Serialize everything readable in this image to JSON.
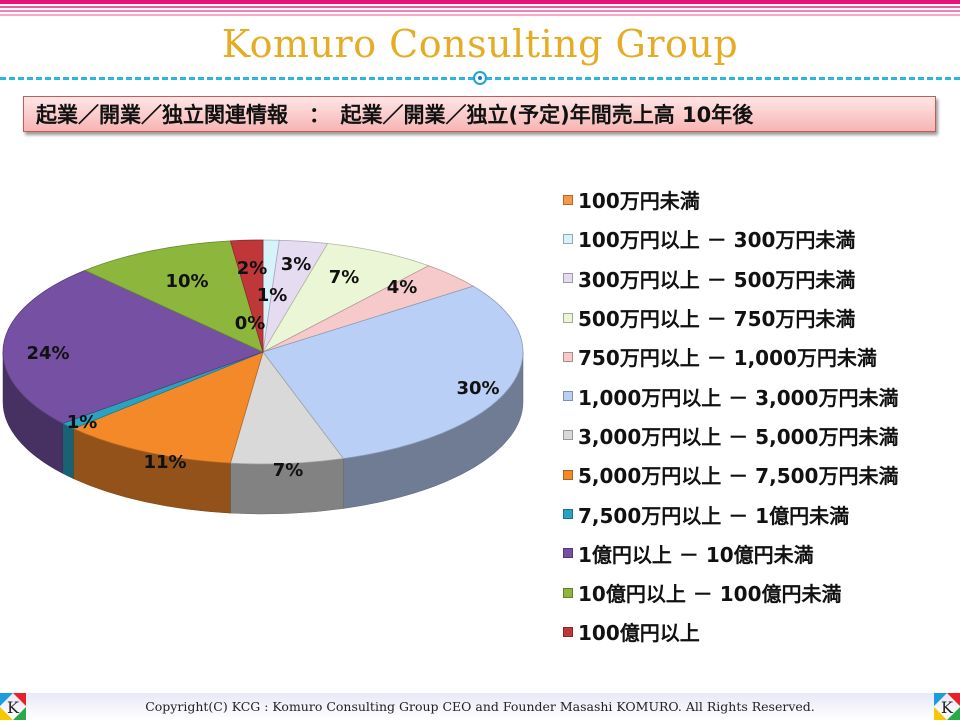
{
  "header": {
    "title": "Komuro Consulting Group",
    "subtitle": "起業／開業／独立関連情報　：　起業／開業／独立(予定)年間売上高 10年後"
  },
  "chart_data": {
    "type": "pie",
    "style": "3d",
    "title": "起業／開業／独立(予定)年間売上高 10年後",
    "legend_position": "right",
    "series": [
      {
        "label": "100万円未満",
        "value": 0,
        "display": "0%",
        "color": "#f79646"
      },
      {
        "label": "100万円以上 － 300万円未満",
        "value": 1,
        "display": "1%",
        "color": "#d6f3fb"
      },
      {
        "label": "300万円以上 － 500万円未満",
        "value": 3,
        "display": "3%",
        "color": "#e6dcf2"
      },
      {
        "label": "500万円以上 － 750万円未満",
        "value": 7,
        "display": "7%",
        "color": "#ebf6d6"
      },
      {
        "label": "750万円以上 － 1,000万円未満",
        "value": 4,
        "display": "4%",
        "color": "#f6caca"
      },
      {
        "label": "1,000万円以上 － 3,000万円未満",
        "value": 30,
        "display": "30%",
        "color": "#b9cff5"
      },
      {
        "label": "3,000万円以上 － 5,000万円未満",
        "value": 7,
        "display": "7%",
        "color": "#d9d9d9"
      },
      {
        "label": "5,000万円以上 － 7,500万円未満",
        "value": 11,
        "display": "11%",
        "color": "#f4892a"
      },
      {
        "label": "7,500万円以上 － 1億円未満",
        "value": 1,
        "display": "1%",
        "color": "#2aa3c1"
      },
      {
        "label": "1億円以上 － 10億円未満",
        "value": 24,
        "display": "24%",
        "color": "#7651a3"
      },
      {
        "label": "10億円以上 － 100億円未満",
        "value": 10,
        "display": "10%",
        "color": "#8cb63c"
      },
      {
        "label": "100億円以上",
        "value": 2,
        "display": "2%",
        "color": "#c0373a"
      }
    ]
  },
  "footer": {
    "copyright": "Copyright(C)  KCG : Komuro Consulting Group   CEO and Founder  Masashi KOMURO. All Rights Reserved.",
    "logo_letter": "K"
  }
}
